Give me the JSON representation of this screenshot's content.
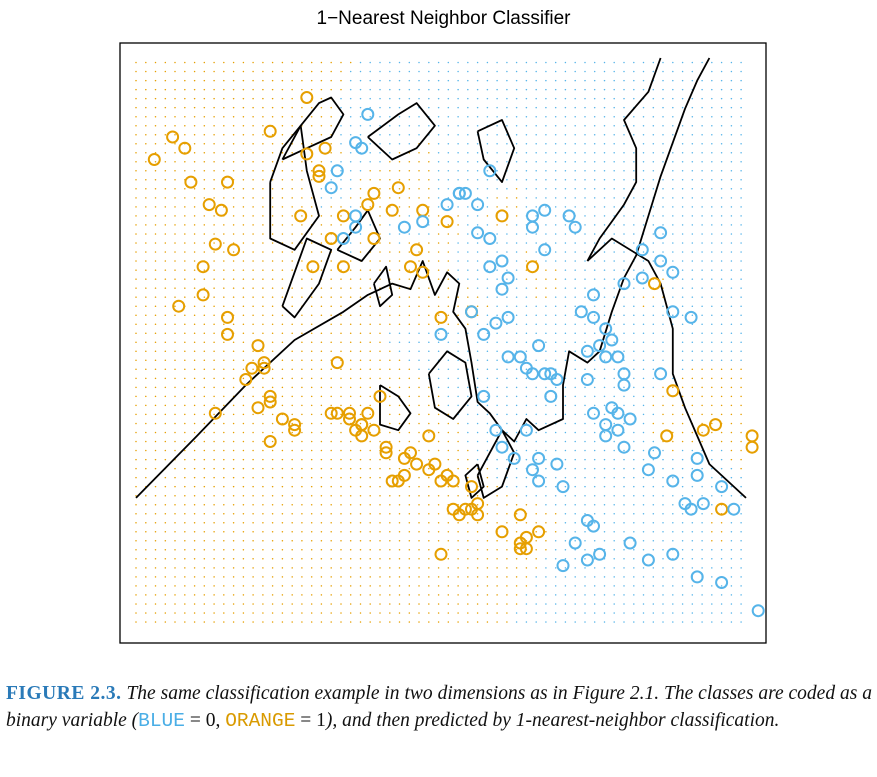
{
  "chart_data": {
    "type": "scatter",
    "title": "1−Nearest Neighbor Classifier",
    "xlabel": "",
    "ylabel": "",
    "xlim": [
      0,
      100
    ],
    "ylim": [
      0,
      100
    ],
    "grid": false,
    "legend": "none",
    "colors": {
      "blue": "#56b4e9",
      "orange": "#e69f00",
      "boundary": "#000000"
    },
    "series": [
      {
        "class": 1,
        "color": "#e69f00",
        "x": [
          3,
          6,
          8,
          9,
          12,
          14,
          16,
          11,
          11,
          7,
          15,
          15,
          21,
          21,
          20,
          22,
          19,
          18,
          20,
          13,
          22,
          26,
          26,
          22,
          24,
          32,
          35,
          33,
          37,
          35,
          36,
          37,
          38,
          37,
          39,
          41,
          41,
          43,
          42,
          44,
          44,
          45,
          48,
          46,
          48,
          49,
          50,
          51,
          52,
          52,
          53,
          54,
          55,
          56,
          55,
          56,
          60,
          63,
          64,
          63,
          64,
          66,
          63,
          50,
          40,
          45,
          46,
          47,
          50,
          51,
          42,
          43,
          47,
          39,
          28,
          22,
          28,
          30,
          29,
          33,
          31,
          38,
          65,
          60,
          55,
          32,
          30,
          27,
          34,
          34,
          39,
          85,
          96,
          88,
          95,
          93,
          101,
          101,
          87,
          15,
          13
        ],
        "y": [
          82,
          86,
          84,
          78,
          74,
          73,
          66,
          63,
          58,
          56,
          51,
          54,
          46,
          45,
          49,
          40,
          45,
          43,
          38,
          37,
          32,
          35,
          34,
          39,
          36,
          37,
          37,
          37,
          35,
          36,
          34,
          33,
          37,
          35,
          34,
          31,
          30,
          25,
          25,
          26,
          29,
          30,
          33,
          28,
          27,
          28,
          25,
          26,
          25,
          20,
          19,
          20,
          24,
          21,
          20,
          19,
          16,
          14,
          15,
          13,
          13,
          16,
          19,
          12,
          40,
          63,
          66,
          62,
          54,
          71,
          73,
          77,
          73,
          76,
          93,
          87,
          83,
          79,
          63,
          46,
          84,
          74,
          63,
          72,
          55,
          68,
          80,
          72,
          72,
          63,
          68,
          60,
          20,
          41,
          35,
          34,
          33,
          31,
          33,
          78,
          67
        ]
      },
      {
        "class": 0,
        "color": "#56b4e9",
        "x": [
          38,
          36,
          37,
          33,
          32,
          36,
          34,
          36,
          44,
          47,
          51,
          54,
          53,
          56,
          56,
          58,
          60,
          60,
          61,
          61,
          65,
          67,
          65,
          67,
          72,
          71,
          73,
          74,
          75,
          75,
          83,
          86,
          86,
          88,
          91,
          88,
          83,
          80,
          76,
          78,
          77,
          58,
          53,
          55,
          57,
          57,
          61,
          63,
          64,
          65,
          66,
          68,
          68,
          69,
          74,
          75,
          77,
          80,
          80,
          78,
          77,
          79,
          79,
          86,
          80,
          81,
          79,
          84,
          77,
          85,
          88,
          92,
          98,
          90,
          92,
          96,
          91,
          93,
          81,
          84,
          92,
          88,
          96,
          102,
          58,
          50,
          59,
          67,
          64,
          66,
          69,
          59,
          60,
          62,
          65,
          66,
          70,
          74,
          74,
          72,
          76,
          70,
          75
        ],
        "y": [
          90,
          85,
          84,
          80,
          77,
          72,
          68,
          70,
          70,
          71,
          74,
          76,
          76,
          74,
          69,
          68,
          64,
          59,
          54,
          61,
          70,
          66,
          72,
          73,
          70,
          72,
          55,
          48,
          54,
          58,
          66,
          69,
          64,
          55,
          54,
          62,
          61,
          60,
          49,
          50,
          52,
          80,
          76,
          55,
          51,
          40,
          47,
          47,
          45,
          44,
          49,
          44,
          40,
          43,
          43,
          37,
          35,
          44,
          42,
          38,
          47,
          47,
          34,
          44,
          31,
          36,
          37,
          27,
          33,
          30,
          25,
          29,
          20,
          21,
          26,
          24,
          20,
          21,
          14,
          11,
          8,
          12,
          7,
          2,
          63,
          51,
          53,
          44,
          34,
          29,
          28,
          34,
          31,
          29,
          27,
          25,
          24,
          18,
          11,
          14,
          12,
          10,
          17
        ]
      }
    ],
    "boundary_curves": [
      [
        [
          0,
          22
        ],
        [
          10,
          33
        ],
        [
          18,
          42
        ],
        [
          26,
          50
        ],
        [
          34,
          55
        ],
        [
          38,
          58
        ],
        [
          42,
          60
        ],
        [
          45,
          59
        ],
        [
          47,
          64
        ],
        [
          49,
          58
        ],
        [
          51,
          62
        ],
        [
          53,
          60
        ],
        [
          52,
          55
        ],
        [
          54,
          52
        ],
        [
          55,
          46
        ],
        [
          56,
          39
        ],
        [
          58,
          37
        ],
        [
          60,
          34
        ],
        [
          62,
          32
        ],
        [
          64,
          36
        ],
        [
          66,
          34
        ],
        [
          70,
          36
        ],
        [
          70,
          42
        ],
        [
          71,
          48
        ],
        [
          74,
          46
        ],
        [
          76,
          48
        ],
        [
          78,
          55
        ],
        [
          80,
          61
        ],
        [
          82,
          65
        ],
        [
          84,
          72
        ],
        [
          86,
          79
        ],
        [
          88,
          85
        ],
        [
          90,
          91
        ],
        [
          92,
          96
        ],
        [
          94,
          100
        ]
      ],
      [
        [
          74,
          64
        ],
        [
          76,
          68
        ],
        [
          78,
          71
        ],
        [
          80,
          74
        ],
        [
          82,
          78
        ],
        [
          82,
          84
        ],
        [
          80,
          89
        ],
        [
          84,
          94
        ],
        [
          86,
          100
        ]
      ],
      [
        [
          100,
          22
        ],
        [
          98,
          24
        ],
        [
          94,
          28
        ],
        [
          92,
          33
        ],
        [
          90,
          38
        ],
        [
          88,
          44
        ],
        [
          88,
          52
        ],
        [
          86,
          60
        ],
        [
          84,
          64
        ],
        [
          78,
          68
        ],
        [
          74,
          64
        ]
      ],
      [
        [
          24,
          82
        ],
        [
          27,
          88
        ],
        [
          30,
          92
        ],
        [
          32,
          93
        ],
        [
          34,
          90
        ],
        [
          32,
          86
        ],
        [
          28,
          84
        ],
        [
          24,
          82
        ]
      ],
      [
        [
          38,
          86
        ],
        [
          43,
          90
        ],
        [
          46,
          92
        ],
        [
          49,
          88
        ],
        [
          46,
          84
        ],
        [
          42,
          82
        ],
        [
          38,
          86
        ]
      ],
      [
        [
          56,
          87
        ],
        [
          60,
          89
        ],
        [
          62,
          84
        ],
        [
          60,
          78
        ],
        [
          57,
          82
        ],
        [
          56,
          87
        ]
      ],
      [
        [
          22,
          78
        ],
        [
          24,
          84
        ],
        [
          27,
          88
        ],
        [
          28,
          80
        ],
        [
          30,
          72
        ],
        [
          26,
          66
        ],
        [
          22,
          68
        ],
        [
          22,
          78
        ]
      ],
      [
        [
          33,
          66
        ],
        [
          36,
          70
        ],
        [
          38,
          73
        ],
        [
          40,
          68
        ],
        [
          37,
          64
        ],
        [
          33,
          66
        ]
      ],
      [
        [
          24,
          56
        ],
        [
          26,
          62
        ],
        [
          28,
          68
        ],
        [
          32,
          66
        ],
        [
          30,
          60
        ],
        [
          26,
          54
        ],
        [
          24,
          56
        ]
      ],
      [
        [
          48,
          44
        ],
        [
          51,
          48
        ],
        [
          54,
          46
        ],
        [
          55,
          40
        ],
        [
          52,
          36
        ],
        [
          49,
          38
        ],
        [
          48,
          44
        ]
      ],
      [
        [
          40,
          42
        ],
        [
          43,
          40
        ],
        [
          45,
          37
        ],
        [
          43,
          34
        ],
        [
          40,
          35
        ],
        [
          40,
          42
        ]
      ],
      [
        [
          56,
          26
        ],
        [
          58,
          30
        ],
        [
          60,
          34
        ],
        [
          62,
          30
        ],
        [
          60,
          24
        ],
        [
          57,
          22
        ],
        [
          56,
          26
        ]
      ],
      [
        [
          56,
          28
        ],
        [
          54,
          26
        ],
        [
          55,
          22
        ],
        [
          57,
          24
        ],
        [
          56,
          28
        ]
      ],
      [
        [
          39,
          60
        ],
        [
          41,
          63
        ],
        [
          42,
          58
        ],
        [
          40,
          56
        ],
        [
          39,
          60
        ]
      ]
    ]
  },
  "caption": {
    "label": "FIGURE 2.3.",
    "part1": "The same classification example in two dimensions as in Figure 2.1. The classes are coded as a binary variable (",
    "blue_code": "BLUE",
    "blue_eq": " = 0, ",
    "orange_code": "ORANGE",
    "orange_eq": " = 1",
    "part2": "), and then predicted by 1-nearest-neighbor classification."
  }
}
